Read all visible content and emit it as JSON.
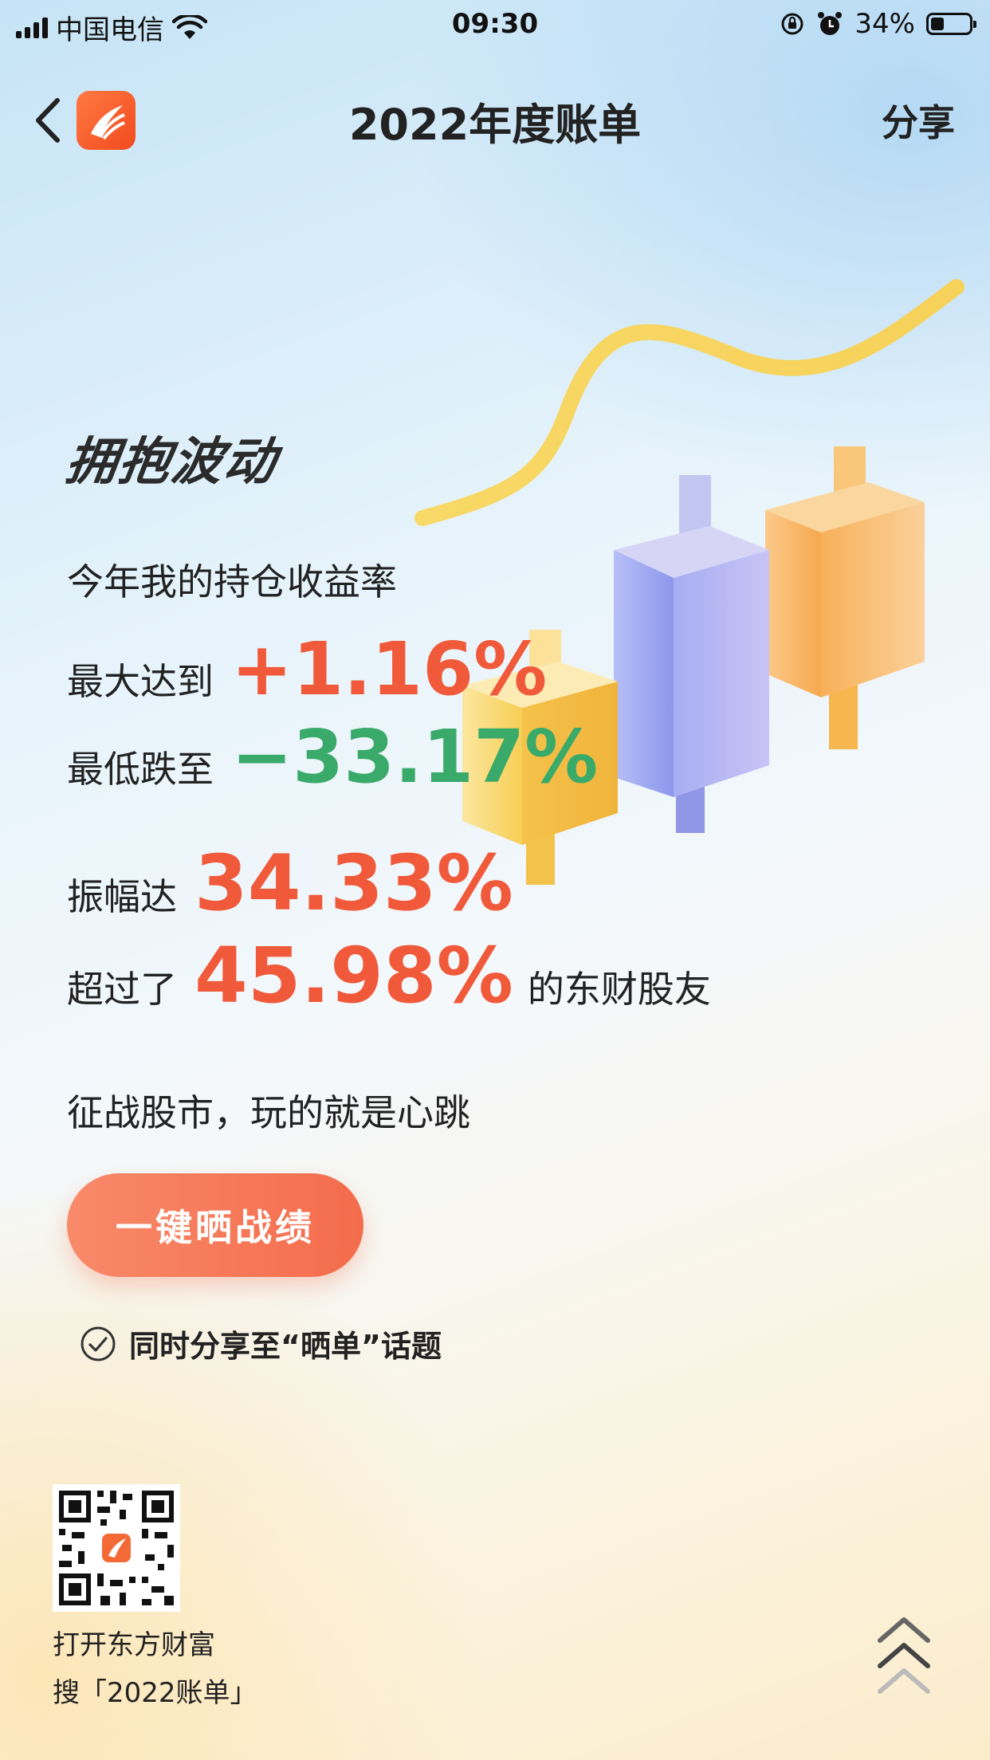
{
  "status_bar": {
    "carrier": "中国电信",
    "time": "09:30",
    "battery_percent": "34%",
    "battery_level": 0.34,
    "icons": [
      "signal-icon",
      "wifi-icon",
      "rotation-lock-icon",
      "alarm-icon",
      "battery-icon"
    ]
  },
  "nav": {
    "back_icon": "chevron-left-icon",
    "logo_icon": "eastmoney-logo-icon",
    "title": "2022年度账单",
    "share_label": "分享"
  },
  "content": {
    "headline": "拥抱波动",
    "intro": "今年我的持仓收益率",
    "max_label": "最大达到",
    "max_value": "+1.16%",
    "min_label": "最低跌至",
    "min_value": "−33.17%",
    "amplitude_label": "振幅达",
    "amplitude_value": "34.33%",
    "exceed_prefix": "超过了",
    "exceed_value": "45.98%",
    "exceed_suffix": "的东财股友",
    "slogan": "征战股市，玩的就是心跳"
  },
  "actions": {
    "share_results_label": "一键晒战绩",
    "sync_label": "同时分享至“晒单”话题",
    "sync_icon": "check-circle-icon",
    "sync_checked": true
  },
  "footer": {
    "qr_icon": "qr-code-icon",
    "line1": "打开东方财富",
    "line2": "搜「2022账单」",
    "scroll_icon": "double-chevron-up-icon"
  },
  "colors": {
    "positive": "#f05a3a",
    "negative": "#3aaa6a",
    "button": "#f46c4c",
    "text": "#222222"
  }
}
